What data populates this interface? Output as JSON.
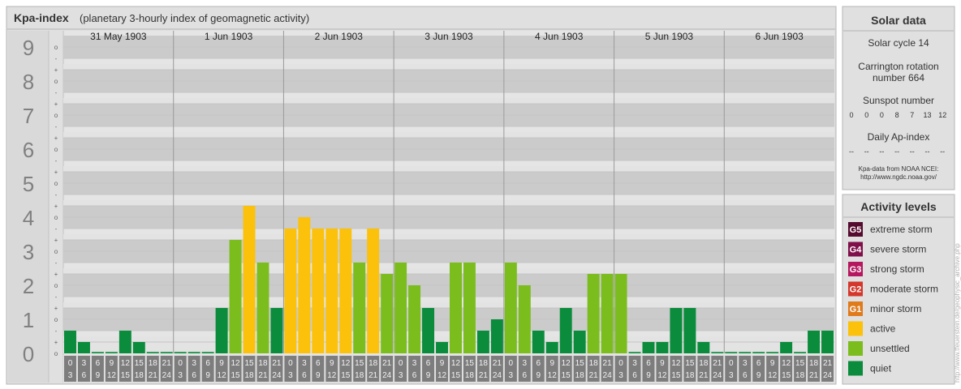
{
  "header": {
    "title": "Kpa-index",
    "subtitle": "(planetary 3-hourly index of geomagnetic activity)"
  },
  "chart_data": {
    "type": "bar",
    "title": "Kpa-index",
    "subtitle": "(planetary 3-hourly index of geomagnetic activity)",
    "ylim": [
      0,
      9
    ],
    "y_levels": [
      "0",
      "1",
      "2",
      "3",
      "4",
      "5",
      "6",
      "7",
      "8",
      "9"
    ],
    "y_sublabels": [
      "o",
      "+",
      "-"
    ],
    "days": [
      "31 May 1903",
      "1 Jun 1903",
      "2 Jun 1903",
      "3 Jun 1903",
      "4 Jun 1903",
      "5 Jun 1903",
      "6 Jun 1903"
    ],
    "interval_top": [
      "0",
      "3",
      "6",
      "9",
      "12",
      "15",
      "18",
      "21"
    ],
    "interval_bottom": [
      "3",
      "6",
      "9",
      "12",
      "15",
      "18",
      "21",
      "24"
    ],
    "values": [
      [
        0.667,
        0.333,
        0,
        0,
        0.667,
        0.333,
        0,
        0
      ],
      [
        0,
        0,
        0,
        1.333,
        3.333,
        4.333,
        2.667,
        1.333
      ],
      [
        3.667,
        4,
        3.667,
        3.667,
        3.667,
        2.667,
        3.667,
        2.333
      ],
      [
        2.667,
        2,
        1.333,
        0.333,
        2.667,
        2.667,
        0.667,
        1
      ],
      [
        2.667,
        2,
        0.667,
        0.333,
        1.333,
        0.667,
        2.333,
        2.333
      ],
      [
        2.333,
        0,
        0.333,
        0.333,
        1.333,
        1.333,
        0.333,
        0
      ],
      [
        0,
        0,
        0,
        0,
        0.333,
        0,
        0.667,
        0.667
      ]
    ],
    "colors": {
      "quiet": "#0b8c3c",
      "unsettled": "#7cbd1e",
      "active": "#fbc10b",
      "minor": "#e07b1c",
      "moderate": "#d4372b",
      "strong": "#b5185f",
      "severe": "#7f1049",
      "extreme": "#550a2f"
    }
  },
  "solar": {
    "heading": "Solar data",
    "cycle": "Solar cycle 14",
    "carrington_line1": "Carrington rotation",
    "carrington_line2": "number 664",
    "sunspot_heading": "Sunspot number",
    "sunspots": [
      "0",
      "0",
      "0",
      "8",
      "7",
      "13",
      "12"
    ],
    "ap_heading": "Daily Ap-index",
    "ap_values": [
      "--",
      "--",
      "--",
      "--",
      "--",
      "--",
      "--"
    ],
    "source_line1": "Kpa-data from NOAA NCEI:",
    "source_line2": "http://www.ngdc.noaa.gov/"
  },
  "activity": {
    "heading": "Activity levels",
    "items": [
      {
        "badge": "G5",
        "label": "extreme storm",
        "color": "#550a2f"
      },
      {
        "badge": "G4",
        "label": "severe storm",
        "color": "#7f1049"
      },
      {
        "badge": "G3",
        "label": "strong storm",
        "color": "#b5185f"
      },
      {
        "badge": "G2",
        "label": "moderate storm",
        "color": "#d4372b"
      },
      {
        "badge": "G1",
        "label": "minor storm",
        "color": "#e07b1c"
      },
      {
        "badge": "",
        "label": "active",
        "color": "#fbc10b"
      },
      {
        "badge": "",
        "label": "unsettled",
        "color": "#7cbd1e"
      },
      {
        "badge": "",
        "label": "quiet",
        "color": "#0b8c3c"
      }
    ]
  },
  "credit": "http://www.tfeuerstein.de/geophysic_archive.php"
}
